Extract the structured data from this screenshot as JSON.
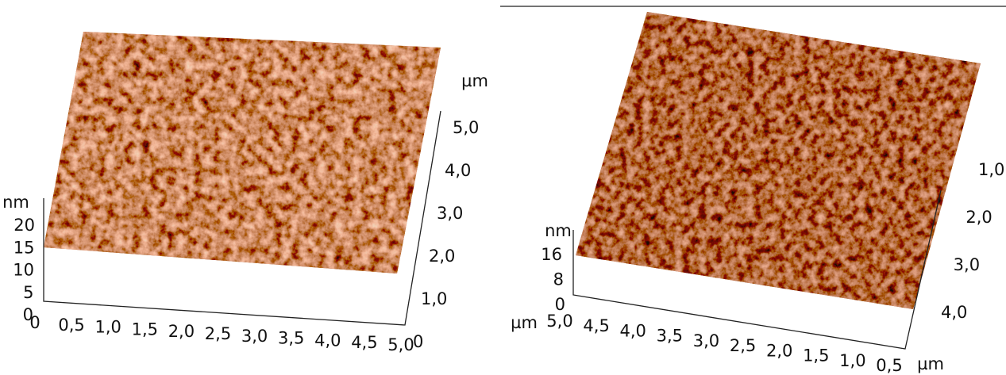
{
  "panels": [
    {
      "z_axis": {
        "unit": "nm",
        "ticks": [
          "20",
          "15",
          "10",
          "5",
          "0"
        ]
      },
      "x_axis": {
        "ticks": [
          "0",
          "0,5",
          "1,0",
          "1,5",
          "2,0",
          "2,5",
          "3,0",
          "3,5",
          "4,0",
          "4,5",
          "5,0"
        ]
      },
      "y_axis": {
        "unit": "µm",
        "ticks": [
          "0",
          "1,0",
          "2,0",
          "3,0",
          "4,0",
          "5,0"
        ]
      }
    },
    {
      "z_axis": {
        "unit": "nm",
        "ticks": [
          "16",
          "8",
          "0"
        ]
      },
      "x_axis": {
        "unit": "µm",
        "ticks": [
          "5,0",
          "4,5",
          "4,0",
          "3,5",
          "3,0",
          "2,5",
          "2,0",
          "1,5",
          "1,0",
          "0,5"
        ]
      },
      "y_axis": {
        "unit": "µm",
        "ticks": [
          "1,0",
          "2,0",
          "3,0",
          "4,0"
        ]
      }
    }
  ]
}
